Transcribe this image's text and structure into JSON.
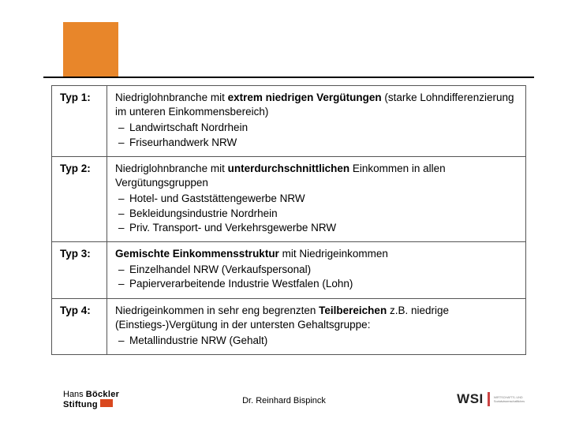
{
  "layout": {
    "accent_block_color": "#e8862a",
    "rule_color": "#000000",
    "table_border_color": "#555555",
    "background": "#ffffff",
    "body_fontsize": 13.5,
    "footer_fontsize": 11
  },
  "rows": [
    {
      "type_label": "Typ 1:",
      "lead_pre": "Niedriglohnbranche mit ",
      "lead_bold": "extrem niedrigen Vergütungen",
      "lead_post": " (starke Lohndifferenzierung im unteren Einkommensbereich)",
      "items": [
        "Landwirtschaft Nordrhein",
        "Friseurhandwerk NRW"
      ]
    },
    {
      "type_label": "Typ 2:",
      "lead_pre": "Niedriglohnbranche mit ",
      "lead_bold": "unterdurchschnittlichen",
      "lead_post": " Einkommen in allen Vergütungsgruppen",
      "items": [
        "Hotel- und Gaststättengewerbe NRW",
        "Bekleidungsindustrie Nordrhein",
        "Priv. Transport- und Verkehrsgewerbe NRW"
      ]
    },
    {
      "type_label": "Typ 3:",
      "lead_pre": "",
      "lead_bold": "Gemischte Einkommensstruktur",
      "lead_post": " mit Niedrigeinkommen",
      "items": [
        "Einzelhandel NRW (Verkaufspersonal)",
        "Papierverarbeitende Industrie Westfalen (Lohn)"
      ]
    },
    {
      "type_label": "Typ 4:",
      "lead_pre": "Niedrigeinkommen in sehr eng begrenzten ",
      "lead_bold": "Teilbereichen",
      "lead_post": " z.B. niedrige (Einstiegs-)Vergütung in der untersten Gehaltsgruppe:",
      "items": [
        "Metallindustrie NRW (Gehalt)"
      ]
    }
  ],
  "footer": {
    "author": "Dr. Reinhard Bispinck",
    "logo_left_line1": "Hans ",
    "logo_left_line1b": "Böckler",
    "logo_left_line2": "Stiftung",
    "logo_right_text": "WSI",
    "logo_right_sub1": "WIRTSCHAFTS- UND",
    "logo_right_sub2": "Sozialwissenschaftliches"
  }
}
